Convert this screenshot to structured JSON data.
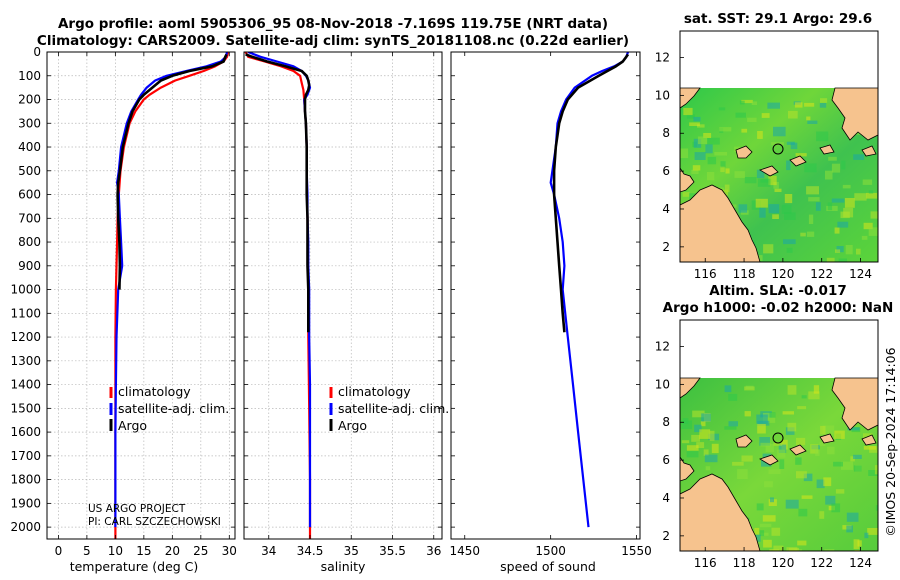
{
  "title": {
    "line1": "Argo profile: aoml 5905306_95 08-Nov-2018 -7.169S 119.75E (NRT data)",
    "line2": "Climatology: CARS2009. Satellite-adj clim: synTS_20181108.nc (0.22d earlier)"
  },
  "map_top_title": "sat. SST: 29.1 Argo: 29.6",
  "map_bottom_title_line1": "Altim. SLA: -0.017",
  "map_bottom_title_line2": "Argo h1000: -0.02 h2000: NaN",
  "pi_line1": "US ARGO PROJECT",
  "pi_line2": "PI: CARL SZCZECHOWSKI",
  "watermark": "©IMOS 20-Sep-2024 17:14:06",
  "legend": [
    "climatology",
    "satellite-adj. clim.",
    "Argo"
  ],
  "colors": {
    "climatology": "#ff0000",
    "satellite": "#0000ff",
    "argo": "#000000",
    "land": "#f6c38e",
    "ocean_high": "#d8e61a",
    "ocean_mid": "#2ec84a",
    "ocean_low": "#1aa8a8"
  },
  "chart_data": [
    {
      "type": "line",
      "name": "temperature",
      "xlabel": "temperature (deg C)",
      "ylabel": "",
      "xlim": [
        -2,
        31
      ],
      "ylim": [
        0,
        2050
      ],
      "y_inverted": true,
      "xticks": [
        "0",
        "5",
        "10",
        "15",
        "20",
        "25",
        "30"
      ],
      "yticks": [
        "0",
        "100",
        "200",
        "300",
        "400",
        "500",
        "600",
        "700",
        "800",
        "900",
        "1000",
        "1100",
        "1200",
        "1300",
        "1400",
        "1500",
        "1600",
        "1700",
        "1800",
        "1900",
        "2000"
      ],
      "series": [
        {
          "name": "climatology",
          "depth": [
            0,
            20,
            40,
            60,
            80,
            100,
            120,
            150,
            180,
            200,
            250,
            300,
            400,
            500,
            600,
            700,
            800,
            900,
            1000,
            1200,
            1400,
            1600,
            1800,
            2000,
            2050
          ],
          "values": [
            29.8,
            29.6,
            29.0,
            27.5,
            25.5,
            23.0,
            20.5,
            18.0,
            16.0,
            15.0,
            13.5,
            12.5,
            11.5,
            10.9,
            10.6,
            10.4,
            10.3,
            10.2,
            10.1,
            10.0,
            10.0,
            10.0,
            10.0,
            10.0,
            10.0
          ]
        },
        {
          "name": "satellite-adj. clim.",
          "depth": [
            0,
            20,
            40,
            60,
            80,
            100,
            120,
            150,
            180,
            200,
            250,
            300,
            400,
            500,
            550,
            600,
            700,
            800,
            900,
            1000,
            1200,
            1400,
            1600,
            1800,
            2000
          ],
          "values": [
            29.6,
            29.4,
            28.5,
            26.0,
            22.5,
            19.0,
            17.0,
            15.5,
            14.5,
            14.0,
            12.8,
            12.0,
            11.0,
            10.6,
            10.3,
            10.6,
            10.8,
            11.0,
            11.2,
            10.5,
            10.2,
            10.1,
            10.0,
            10.0,
            10.0
          ]
        },
        {
          "name": "Argo",
          "depth": [
            10,
            20,
            40,
            60,
            80,
            100,
            120,
            140,
            160,
            180,
            200,
            250,
            300,
            400,
            500,
            550,
            600,
            700,
            800,
            900,
            1000
          ],
          "values": [
            29.5,
            29.3,
            29.0,
            27.0,
            23.0,
            20.0,
            18.0,
            17.0,
            16.0,
            15.0,
            14.2,
            13.0,
            12.3,
            11.3,
            10.8,
            10.5,
            10.4,
            10.5,
            10.7,
            10.8,
            10.7
          ]
        }
      ]
    },
    {
      "type": "line",
      "name": "salinity",
      "xlabel": "salinity",
      "ylabel": "",
      "xlim": [
        33.7,
        36.1
      ],
      "ylim": [
        0,
        2050
      ],
      "y_inverted": true,
      "xticks": [
        "34",
        "34.5",
        "35",
        "35.5",
        "36"
      ],
      "series": [
        {
          "name": "climatology",
          "depth": [
            0,
            20,
            40,
            60,
            80,
            100,
            130,
            160,
            200,
            250,
            300,
            400,
            500,
            700,
            1000,
            1200,
            1500,
            1800,
            2000,
            2050
          ],
          "values": [
            33.72,
            33.75,
            33.95,
            34.15,
            34.3,
            34.38,
            34.4,
            34.42,
            34.43,
            34.44,
            34.45,
            34.46,
            34.46,
            34.47,
            34.48,
            34.48,
            34.49,
            34.5,
            34.5,
            34.5
          ]
        },
        {
          "name": "satellite-adj. clim.",
          "depth": [
            0,
            20,
            40,
            60,
            80,
            100,
            120,
            150,
            180,
            200,
            250,
            300,
            400,
            500,
            600,
            700,
            800,
            900,
            1000,
            1200,
            1400,
            1600,
            1800,
            2000
          ],
          "values": [
            33.75,
            33.9,
            34.1,
            34.3,
            34.4,
            34.45,
            34.48,
            34.5,
            34.47,
            34.43,
            34.44,
            34.45,
            34.46,
            34.46,
            34.47,
            34.47,
            34.48,
            34.48,
            34.49,
            34.49,
            34.5,
            34.5,
            34.5,
            34.5
          ]
        },
        {
          "name": "Argo",
          "depth": [
            10,
            20,
            40,
            60,
            80,
            100,
            120,
            140,
            160,
            180,
            200,
            250,
            300,
            400,
            500,
            600,
            700,
            800,
            900,
            1000,
            1100,
            1180
          ],
          "values": [
            33.72,
            33.8,
            33.98,
            34.2,
            34.4,
            34.46,
            34.48,
            34.49,
            34.48,
            34.45,
            34.44,
            34.44,
            34.45,
            34.46,
            34.46,
            34.46,
            34.47,
            34.47,
            34.47,
            34.48,
            34.48,
            34.48
          ]
        }
      ]
    },
    {
      "type": "line",
      "name": "speed of sound",
      "xlabel": "speed of sound",
      "ylabel": "",
      "xlim": [
        1442,
        1552
      ],
      "ylim": [
        0,
        2050
      ],
      "y_inverted": true,
      "xticks": [
        "1450",
        "1500",
        "1550"
      ],
      "series": [
        {
          "name": "satellite-adj. clim.",
          "depth": [
            0,
            20,
            40,
            60,
            80,
            100,
            150,
            200,
            250,
            300,
            400,
            500,
            550,
            600,
            700,
            800,
            900,
            1000,
            1200,
            1400,
            1600,
            1800,
            2000
          ],
          "values": [
            1545,
            1544,
            1542,
            1537,
            1530,
            1524,
            1514,
            1509,
            1506,
            1504,
            1503,
            1501,
            1500,
            1502,
            1505,
            1507,
            1508,
            1507,
            1510,
            1513,
            1516,
            1519,
            1522
          ]
        },
        {
          "name": "Argo",
          "depth": [
            10,
            20,
            40,
            60,
            80,
            100,
            150,
            200,
            250,
            300,
            400,
            500,
            600,
            700,
            800,
            900,
            1000,
            1100,
            1180
          ],
          "values": [
            1545,
            1544,
            1542,
            1538,
            1533,
            1528,
            1516,
            1510,
            1507,
            1505,
            1503,
            1502,
            1502,
            1503,
            1504,
            1505,
            1506,
            1507,
            1508
          ]
        }
      ]
    },
    {
      "type": "heatmap",
      "name": "sat. SST map",
      "xlim": [
        114.7,
        124.9
      ],
      "ylim": [
        1.2,
        13.4
      ],
      "xticks": [
        "116",
        "118",
        "120",
        "122",
        "124"
      ],
      "yticks": [
        "2",
        "4",
        "6",
        "8",
        "10",
        "12"
      ],
      "data_top_lat": 10,
      "float_position": [
        119.75,
        7.169
      ]
    },
    {
      "type": "heatmap",
      "name": "Altim. SLA map",
      "xlim": [
        114.7,
        124.9
      ],
      "ylim": [
        1.2,
        13.4
      ],
      "xticks": [
        "116",
        "118",
        "120",
        "122",
        "124"
      ],
      "yticks": [
        "2",
        "4",
        "6",
        "8",
        "10",
        "12"
      ],
      "data_top_lat": 10,
      "float_position": [
        119.75,
        7.169
      ]
    }
  ]
}
